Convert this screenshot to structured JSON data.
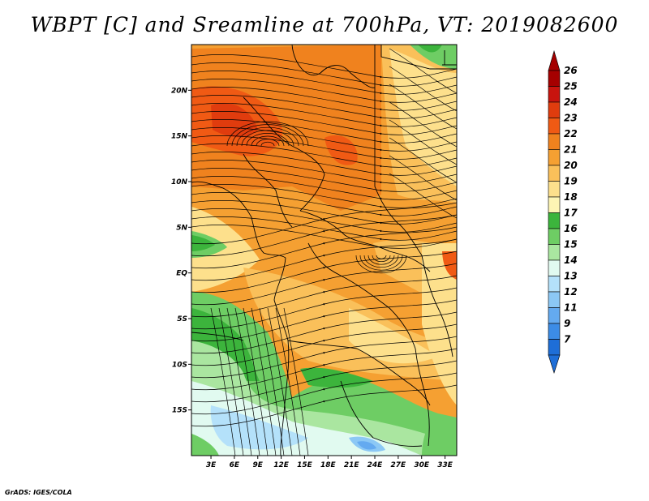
{
  "title": "WBPT [C] and Sreamline at 700hPa, VT: 2019082600",
  "credit": "GrADS: IGES/COLA",
  "map": {
    "lat_ticks": [
      {
        "label": "20N",
        "value": 20
      },
      {
        "label": "15N",
        "value": 15
      },
      {
        "label": "10N",
        "value": 10
      },
      {
        "label": "5N",
        "value": 5
      },
      {
        "label": "EQ",
        "value": 0
      },
      {
        "label": "5S",
        "value": -5
      },
      {
        "label": "10S",
        "value": -10
      },
      {
        "label": "15S",
        "value": -15
      }
    ],
    "lon_ticks": [
      {
        "label": "3E",
        "value": 3
      },
      {
        "label": "6E",
        "value": 6
      },
      {
        "label": "9E",
        "value": 9
      },
      {
        "label": "12E",
        "value": 12
      },
      {
        "label": "15E",
        "value": 15
      },
      {
        "label": "18E",
        "value": 18
      },
      {
        "label": "21E",
        "value": 21
      },
      {
        "label": "24E",
        "value": 24
      },
      {
        "label": "27E",
        "value": 27
      },
      {
        "label": "30E",
        "value": 30
      },
      {
        "label": "33E",
        "value": 33
      }
    ],
    "lon_range": [
      0.5,
      34.5
    ],
    "lat_range": [
      -20,
      25
    ]
  },
  "colorbar": {
    "levels": [
      {
        "label": "26",
        "color": "#a50000"
      },
      {
        "label": "25",
        "color": "#c8140e"
      },
      {
        "label": "24",
        "color": "#e03c0e"
      },
      {
        "label": "23",
        "color": "#f05a14"
      },
      {
        "label": "22",
        "color": "#f0821e"
      },
      {
        "label": "21",
        "color": "#f5a032"
      },
      {
        "label": "20",
        "color": "#fac05a"
      },
      {
        "label": "19",
        "color": "#fde08c"
      },
      {
        "label": "18",
        "color": "#fdf5b4"
      },
      {
        "label": "17",
        "color": "#3cb43c"
      },
      {
        "label": "16",
        "color": "#6ecd64"
      },
      {
        "label": "15",
        "color": "#aae6a0"
      },
      {
        "label": "14",
        "color": "#e1faf0"
      },
      {
        "label": "13",
        "color": "#b4e1fa"
      },
      {
        "label": "12",
        "color": "#8cc8f5"
      },
      {
        "label": "11",
        "color": "#64aaf0"
      },
      {
        "label": "9",
        "color": "#3c8ce6"
      },
      {
        "label": "7",
        "color": "#1e6ed7"
      }
    ],
    "top_arrow_color": "#a50000",
    "bottom_arrow_color": "#1e6ed7"
  }
}
